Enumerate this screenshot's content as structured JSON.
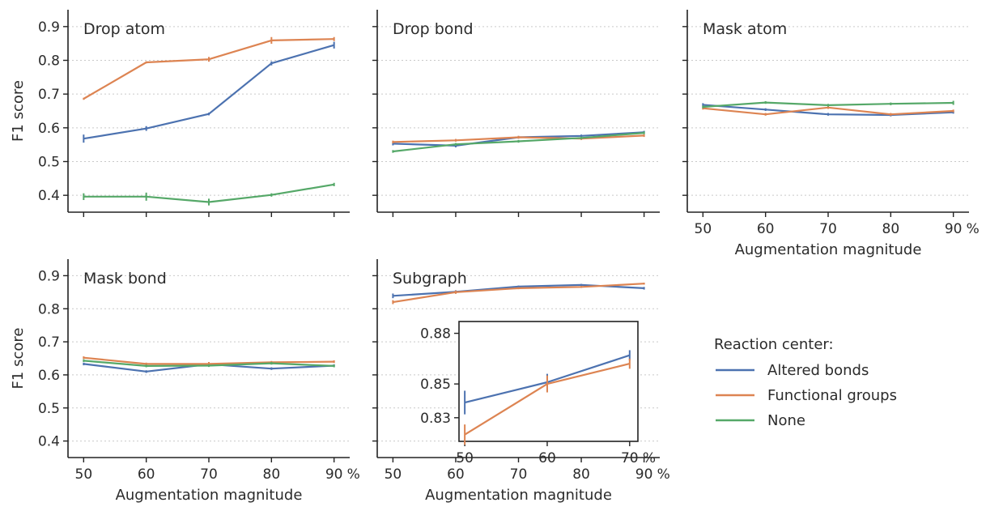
{
  "colors": {
    "altered_bonds": "#4c72b0",
    "functional_groups": "#dd8452",
    "none": "#55a868",
    "axis": "#222222",
    "grid": "#c9c9c9"
  },
  "legend": {
    "title": "Reaction center:",
    "items": [
      "Altered bonds",
      "Functional groups",
      "None"
    ],
    "placement": "right"
  },
  "chart_data": [
    {
      "type": "line",
      "title": "Drop atom",
      "x": [
        50,
        60,
        70,
        80,
        90
      ],
      "x_unit": "%",
      "ylabel": "F1 score",
      "xlabel": "",
      "ylim": [
        0.35,
        0.95
      ],
      "yticks": [
        "0.4",
        "0.5",
        "0.6",
        "0.7",
        "0.8",
        "0.9"
      ],
      "xticks": [],
      "grid": "horizontal dotted",
      "series": [
        {
          "name": "Altered bonds",
          "values": [
            0.568,
            0.598,
            0.641,
            0.791,
            0.845
          ],
          "err": [
            0.012,
            0.007,
            0.004,
            0.006,
            0.01
          ]
        },
        {
          "name": "Functional groups",
          "values": [
            0.686,
            0.794,
            0.803,
            0.859,
            0.863
          ],
          "err": [
            0.003,
            0.003,
            0.007,
            0.01,
            0.006
          ]
        },
        {
          "name": "None",
          "values": [
            0.396,
            0.396,
            0.38,
            0.401,
            0.432
          ],
          "err": [
            0.01,
            0.012,
            0.01,
            0.005,
            0.005
          ]
        }
      ]
    },
    {
      "type": "line",
      "title": "Drop bond",
      "x": [
        50,
        60,
        70,
        80,
        90
      ],
      "x_unit": "%",
      "ylabel": "",
      "xlabel": "",
      "ylim": [
        0.35,
        0.95
      ],
      "yticks": [],
      "xticks": [],
      "grid": "horizontal dotted",
      "series": [
        {
          "name": "Altered bonds",
          "values": [
            0.553,
            0.547,
            0.572,
            0.576,
            0.587
          ],
          "err": [
            0.005,
            0.005,
            0.004,
            0.004,
            0.004
          ]
        },
        {
          "name": "Functional groups",
          "values": [
            0.558,
            0.563,
            0.572,
            0.568,
            0.577
          ],
          "err": [
            0.004,
            0.004,
            0.004,
            0.004,
            0.004
          ]
        },
        {
          "name": "None",
          "values": [
            0.53,
            0.551,
            0.56,
            0.57,
            0.585
          ],
          "err": [
            0.004,
            0.004,
            0.004,
            0.004,
            0.004
          ]
        }
      ]
    },
    {
      "type": "line",
      "title": "Mask atom",
      "x": [
        50,
        60,
        70,
        80,
        90
      ],
      "x_unit": "%",
      "ylabel": "",
      "xlabel": "Augmentation magnitude",
      "ylim": [
        0.35,
        0.95
      ],
      "yticks": [],
      "xticks": [
        "50",
        "60",
        "70",
        "80",
        "90"
      ],
      "grid": "horizontal dotted",
      "series": [
        {
          "name": "Altered bonds",
          "values": [
            0.668,
            0.654,
            0.64,
            0.638,
            0.646
          ],
          "err": [
            0.005,
            0.004,
            0.004,
            0.004,
            0.004
          ]
        },
        {
          "name": "Functional groups",
          "values": [
            0.658,
            0.64,
            0.66,
            0.64,
            0.65
          ],
          "err": [
            0.004,
            0.004,
            0.004,
            0.004,
            0.004
          ]
        },
        {
          "name": "None",
          "values": [
            0.662,
            0.675,
            0.667,
            0.671,
            0.674
          ],
          "err": [
            0.004,
            0.004,
            0.004,
            0.004,
            0.006
          ]
        }
      ]
    },
    {
      "type": "line",
      "title": "Mask bond",
      "x": [
        50,
        60,
        70,
        80,
        90
      ],
      "x_unit": "%",
      "ylabel": "F1 score",
      "xlabel": "Augmentation magnitude",
      "ylim": [
        0.35,
        0.95
      ],
      "yticks": [
        "0.4",
        "0.5",
        "0.6",
        "0.7",
        "0.8",
        "0.9"
      ],
      "xticks": [
        "50",
        "60",
        "70",
        "80",
        "90"
      ],
      "grid": "horizontal dotted",
      "series": [
        {
          "name": "Altered bonds",
          "values": [
            0.633,
            0.61,
            0.632,
            0.619,
            0.628
          ],
          "err": [
            0.004,
            0.004,
            0.004,
            0.004,
            0.004
          ]
        },
        {
          "name": "Functional groups",
          "values": [
            0.652,
            0.633,
            0.633,
            0.638,
            0.64
          ],
          "err": [
            0.004,
            0.004,
            0.006,
            0.004,
            0.004
          ]
        },
        {
          "name": "None",
          "values": [
            0.643,
            0.627,
            0.628,
            0.635,
            0.627
          ],
          "err": [
            0.004,
            0.004,
            0.004,
            0.004,
            0.004
          ]
        }
      ]
    },
    {
      "type": "line",
      "title": "Subgraph",
      "x": [
        50,
        60,
        70,
        80,
        90
      ],
      "x_unit": "%",
      "ylabel": "",
      "xlabel": "Augmentation magnitude",
      "ylim": [
        0.35,
        0.95
      ],
      "yticks": [],
      "xticks": [
        "50",
        "60",
        "70",
        "80",
        "90"
      ],
      "grid": "horizontal dotted",
      "series": [
        {
          "name": "Altered bonds",
          "values": [
            0.839,
            0.851,
            0.867,
            0.872,
            0.862
          ],
          "err": [
            0.007,
            0.005,
            0.003,
            0.003,
            0.004
          ]
        },
        {
          "name": "Functional groups",
          "values": [
            0.82,
            0.85,
            0.862,
            0.866,
            0.876
          ],
          "err": [
            0.006,
            0.005,
            0.003,
            0.003,
            0.003
          ]
        }
      ]
    },
    {
      "type": "line",
      "title": "",
      "inset_of": "Subgraph",
      "x": [
        50,
        60,
        70
      ],
      "x_unit": "%",
      "ylim": [
        0.816,
        0.887
      ],
      "yticks": [
        "0.83",
        "0.85",
        "0.88"
      ],
      "ytick_values": [
        0.83,
        0.85,
        0.88
      ],
      "xticks": [
        "50",
        "60",
        "70"
      ],
      "grid": "none",
      "series": [
        {
          "name": "Altered bonds",
          "values": [
            0.839,
            0.851,
            0.867
          ],
          "err": [
            0.007,
            0.005,
            0.003
          ]
        },
        {
          "name": "Functional groups",
          "values": [
            0.82,
            0.85,
            0.862
          ],
          "err": [
            0.006,
            0.005,
            0.003
          ]
        }
      ]
    }
  ]
}
